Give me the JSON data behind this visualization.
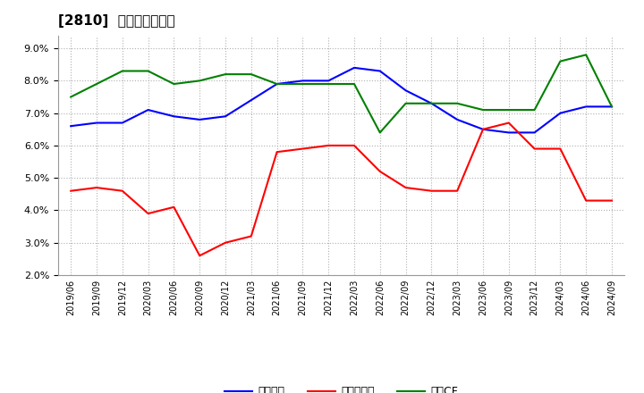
{
  "title": "[2810]  マージンの推移",
  "legend_labels": [
    "経常利益",
    "当期純利益",
    "営業CF"
  ],
  "line_colors": [
    "#0000FF",
    "#FF0000",
    "#008000"
  ],
  "ylim": [
    0.02,
    0.094
  ],
  "yticks": [
    0.02,
    0.03,
    0.04,
    0.05,
    0.06,
    0.07,
    0.08,
    0.09
  ],
  "background_color": "#ffffff",
  "grid_color": "#b0b0b0",
  "dates": [
    "2019/06",
    "2019/09",
    "2019/12",
    "2020/03",
    "2020/06",
    "2020/09",
    "2020/12",
    "2021/03",
    "2021/06",
    "2021/09",
    "2021/12",
    "2022/03",
    "2022/06",
    "2022/09",
    "2022/12",
    "2023/03",
    "2023/06",
    "2023/09",
    "2023/12",
    "2024/03",
    "2024/06",
    "2024/09"
  ],
  "series": {
    "経常利益": [
      0.066,
      0.067,
      0.067,
      0.071,
      0.069,
      0.068,
      0.069,
      0.074,
      0.079,
      0.08,
      0.08,
      0.084,
      0.083,
      0.077,
      0.073,
      0.068,
      0.065,
      0.064,
      0.064,
      0.07,
      0.072,
      0.072
    ],
    "当期純利益": [
      0.046,
      0.047,
      0.046,
      0.039,
      0.041,
      0.026,
      0.03,
      0.032,
      0.058,
      0.059,
      0.06,
      0.06,
      0.052,
      0.047,
      0.046,
      0.046,
      0.065,
      0.067,
      0.059,
      0.059,
      0.043,
      0.043
    ],
    "営業CF": [
      0.075,
      0.079,
      0.083,
      0.083,
      0.079,
      0.08,
      0.082,
      0.082,
      0.079,
      0.079,
      0.079,
      0.079,
      0.064,
      0.073,
      0.073,
      0.073,
      0.071,
      0.071,
      0.071,
      0.086,
      0.088,
      0.072
    ]
  }
}
